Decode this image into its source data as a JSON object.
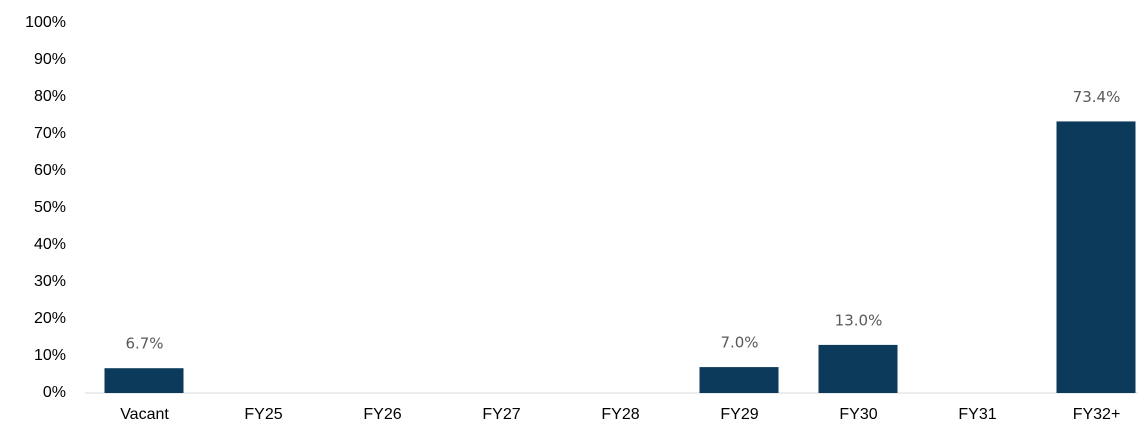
{
  "chart_data": {
    "type": "bar",
    "categories": [
      "Vacant",
      "FY25",
      "FY26",
      "FY27",
      "FY28",
      "FY29",
      "FY30",
      "FY31",
      "FY32+"
    ],
    "values": [
      6.7,
      0,
      0,
      0,
      0,
      7.0,
      13.0,
      0,
      73.4
    ],
    "value_labels": [
      "6.7%",
      null,
      null,
      null,
      null,
      "7.0%",
      "13.0%",
      null,
      "73.4%"
    ],
    "color": "#0b3a5a",
    "ylim": [
      0,
      100
    ],
    "yticks": [
      {
        "value": 0,
        "label": "0%"
      },
      {
        "value": 10,
        "label": "10%"
      },
      {
        "value": 20,
        "label": "20%"
      },
      {
        "value": 30,
        "label": "30%"
      },
      {
        "value": 40,
        "label": "40%"
      },
      {
        "value": 50,
        "label": "50%"
      },
      {
        "value": 60,
        "label": "60%"
      },
      {
        "value": 70,
        "label": "70%"
      },
      {
        "value": 80,
        "label": "80%"
      },
      {
        "value": 90,
        "label": "90%"
      },
      {
        "value": 100,
        "label": "100%"
      }
    ],
    "grid": false
  }
}
